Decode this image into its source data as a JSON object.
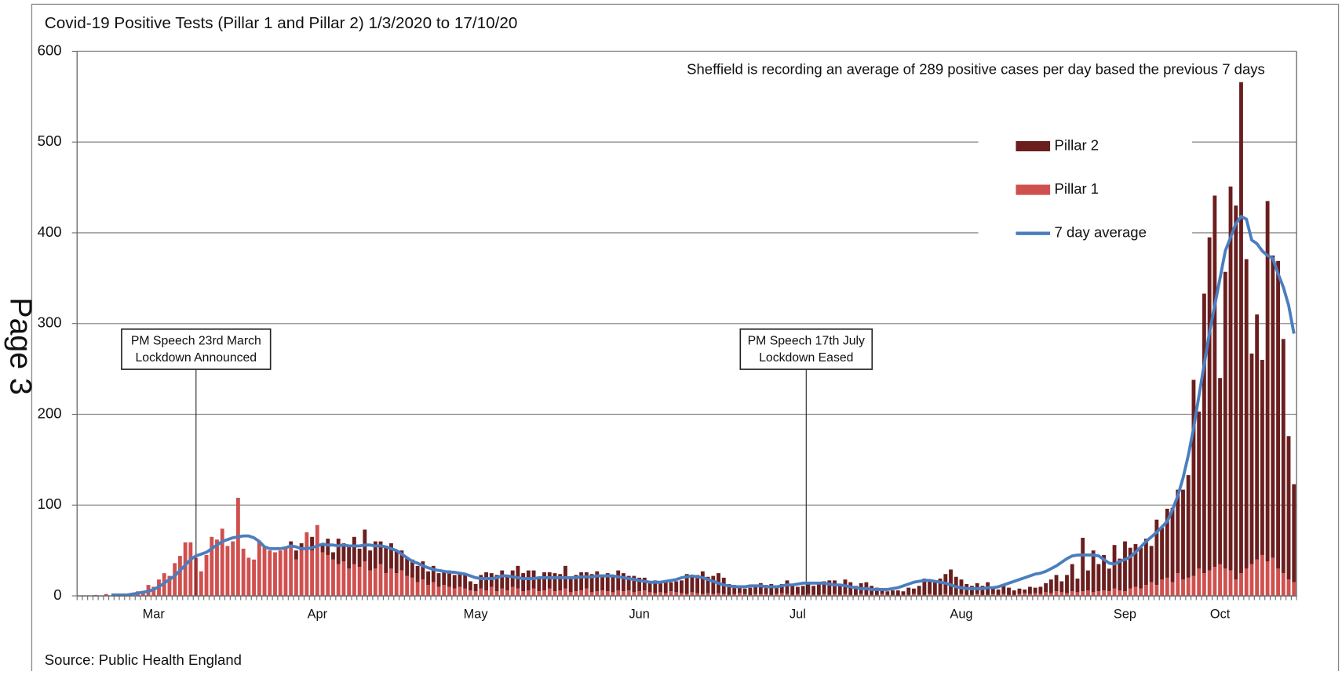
{
  "chart_data": {
    "type": "bar",
    "title": "Covid-19 Positive Tests (Pillar 1 and Pillar 2) 1/3/2020 to 17/10/20",
    "note": "Sheffield is recording an average of 289 positive cases per day based the previous 7 days",
    "source": "Source: Public Health England",
    "side_label": "Page 3",
    "annotations": [
      [
        "PM Speech 23rd March",
        "Lockdown Announced"
      ],
      [
        "PM Speech 17th July",
        "Lockdown Eased"
      ]
    ],
    "ylim": [
      0,
      600
    ],
    "yticks": [
      0,
      100,
      200,
      300,
      400,
      500,
      600
    ],
    "grid": true,
    "categories": [
      null,
      null,
      null,
      null,
      null,
      null,
      null,
      null,
      null,
      null,
      null,
      null,
      null,
      null,
      "Mar",
      null,
      null,
      null,
      null,
      null,
      null,
      null,
      null,
      null,
      null,
      null,
      null,
      null,
      null,
      null,
      null,
      null,
      null,
      null,
      null,
      null,
      null,
      null,
      null,
      null,
      null,
      null,
      null,
      null,
      null,
      "Apr",
      null,
      null,
      null,
      null,
      null,
      null,
      null,
      null,
      null,
      null,
      null,
      null,
      null,
      null,
      null,
      null,
      null,
      null,
      null,
      null,
      null,
      null,
      null,
      null,
      null,
      null,
      null,
      null,
      null,
      "May",
      null,
      null,
      null,
      null,
      null,
      null,
      null,
      null,
      null,
      null,
      null,
      null,
      null,
      null,
      null,
      null,
      null,
      null,
      null,
      null,
      null,
      null,
      null,
      null,
      null,
      null,
      null,
      null,
      null,
      null,
      "Jun",
      null,
      null,
      null,
      null,
      null,
      null,
      null,
      null,
      null,
      null,
      null,
      null,
      null,
      null,
      null,
      null,
      null,
      null,
      null,
      null,
      null,
      null,
      null,
      null,
      null,
      null,
      null,
      null,
      null,
      "Jul",
      null,
      null,
      null,
      null,
      null,
      null,
      null,
      null,
      null,
      null,
      null,
      null,
      null,
      null,
      null,
      null,
      null,
      null,
      null,
      null,
      null,
      null,
      null,
      null,
      null,
      null,
      null,
      null,
      null,
      null,
      "Aug",
      null,
      null,
      null,
      null,
      null,
      null,
      null,
      null,
      null,
      null,
      null,
      null,
      null,
      null,
      null,
      null,
      null,
      null,
      null,
      null,
      null,
      null,
      null,
      null,
      null,
      null,
      null,
      null,
      null,
      null,
      "Sep",
      null,
      null,
      null,
      null,
      null,
      null,
      null,
      null,
      null,
      null,
      null,
      null,
      null,
      null,
      null,
      null,
      null,
      "Oct",
      null,
      null,
      null,
      null,
      null,
      null,
      null,
      null,
      null,
      null,
      null,
      null,
      null,
      null
    ],
    "series": [
      {
        "name": "Pillar 2",
        "color": "#6b1e1e",
        "values": [
          0,
          0,
          0,
          0,
          0,
          0,
          0,
          0,
          0,
          0,
          0,
          0,
          0,
          0,
          0,
          0,
          0,
          0,
          0,
          0,
          0,
          0,
          0,
          0,
          0,
          0,
          0,
          0,
          0,
          0,
          0,
          0,
          0,
          0,
          0,
          0,
          0,
          0,
          0,
          0,
          5,
          10,
          8,
          0,
          15,
          0,
          10,
          18,
          8,
          28,
          20,
          25,
          30,
          20,
          35,
          22,
          30,
          25,
          30,
          28,
          25,
          22,
          20,
          20,
          18,
          20,
          15,
          18,
          15,
          16,
          18,
          15,
          16,
          15,
          10,
          8,
          15,
          20,
          15,
          18,
          20,
          15,
          18,
          25,
          20,
          22,
          20,
          14,
          20,
          18,
          20,
          18,
          25,
          15,
          18,
          20,
          18,
          20,
          22,
          16,
          20,
          18,
          22,
          20,
          16,
          18,
          15,
          14,
          12,
          14,
          12,
          13,
          10,
          12,
          14,
          22,
          18,
          20,
          25,
          18,
          20,
          22,
          18,
          12,
          10,
          8,
          6,
          8,
          10,
          12,
          10,
          12,
          8,
          10,
          15,
          12,
          8,
          10,
          12,
          10,
          12,
          14,
          16,
          15,
          12,
          16,
          14,
          10,
          12,
          14,
          10,
          8,
          6,
          4,
          5,
          6,
          4,
          8,
          6,
          10,
          18,
          16,
          14,
          18,
          22,
          28,
          20,
          16,
          12,
          10,
          12,
          10,
          14,
          8,
          6,
          10,
          8,
          5,
          6,
          4,
          8,
          6,
          8,
          10,
          15,
          18,
          12,
          20,
          30,
          15,
          59,
          22,
          46,
          30,
          39,
          25,
          48,
          35,
          55,
          45,
          47,
          45,
          51,
          40,
          72,
          57,
          76,
          82,
          92,
          99,
          113,
          216,
          173,
          308,
          367,
          409,
          205,
          327,
          423,
          412,
          541,
          341,
          232,
          270,
          215,
          397,
          333,
          339,
          258,
          158,
          108
        ]
      },
      {
        "name": "Pillar 1",
        "color": "#cf504e",
        "values": [
          0,
          0,
          0,
          1,
          0,
          2,
          0,
          0,
          1,
          2,
          3,
          5,
          4,
          12,
          10,
          18,
          25,
          22,
          36,
          44,
          59,
          59,
          42,
          27,
          45,
          65,
          62,
          74,
          55,
          60,
          108,
          52,
          42,
          40,
          60,
          55,
          50,
          48,
          50,
          52,
          55,
          40,
          50,
          70,
          50,
          78,
          48,
          45,
          40,
          35,
          38,
          30,
          35,
          32,
          38,
          28,
          30,
          35,
          25,
          30,
          25,
          28,
          22,
          20,
          15,
          18,
          12,
          15,
          10,
          12,
          10,
          8,
          10,
          8,
          6,
          5,
          8,
          6,
          10,
          5,
          8,
          6,
          10,
          8,
          5,
          6,
          8,
          5,
          6,
          8,
          5,
          6,
          8,
          4,
          5,
          6,
          8,
          4,
          5,
          6,
          5,
          4,
          6,
          5,
          6,
          4,
          5,
          6,
          4,
          3,
          4,
          3,
          5,
          4,
          3,
          2,
          4,
          3,
          2,
          3,
          2,
          3,
          2,
          1,
          2,
          3,
          2,
          1,
          2,
          2,
          2,
          1,
          2,
          3,
          2,
          1,
          2,
          1,
          2,
          1,
          1,
          2,
          1,
          2,
          1,
          2,
          1,
          1,
          2,
          1,
          1,
          1,
          2,
          1,
          1,
          0,
          1,
          1,
          2,
          1,
          1,
          2,
          1,
          1,
          2,
          1,
          1,
          2,
          1,
          1,
          2,
          1,
          1,
          2,
          1,
          2,
          1,
          1,
          2,
          3,
          2,
          3,
          2,
          4,
          3,
          5,
          4,
          3,
          5,
          4,
          5,
          6,
          4,
          5,
          6,
          5,
          8,
          6,
          5,
          8,
          10,
          8,
          12,
          15,
          12,
          18,
          20,
          15,
          25,
          18,
          20,
          22,
          30,
          25,
          28,
          32,
          35,
          30,
          28,
          18,
          25,
          30,
          35,
          40,
          45,
          38,
          42,
          30,
          25,
          18,
          15
        ]
      },
      {
        "name": "7 day average",
        "type": "line",
        "color": "#4a7ebf",
        "values": [
          null,
          null,
          null,
          null,
          null,
          null,
          1,
          1,
          1,
          1,
          2,
          3,
          4,
          5,
          7,
          10,
          14,
          18,
          22,
          28,
          34,
          40,
          44,
          46,
          48,
          52,
          56,
          60,
          62,
          64,
          65,
          66,
          66,
          64,
          60,
          54,
          52,
          52,
          52,
          53,
          55,
          54,
          52,
          52,
          53,
          55,
          57,
          56,
          56,
          55,
          56,
          55,
          55,
          55,
          56,
          56,
          55,
          55,
          54,
          52,
          50,
          46,
          42,
          38,
          36,
          33,
          31,
          29,
          28,
          27,
          26,
          26,
          25,
          24,
          22,
          20,
          19,
          19,
          19,
          20,
          22,
          22,
          21,
          20,
          19,
          19,
          19,
          20,
          20,
          20,
          20,
          20,
          20,
          20,
          20,
          21,
          21,
          21,
          22,
          22,
          22,
          22,
          21,
          20,
          19,
          18,
          17,
          16,
          15,
          15,
          15,
          16,
          17,
          18,
          20,
          21,
          22,
          21,
          20,
          18,
          16,
          14,
          12,
          11,
          10,
          10,
          10,
          11,
          11,
          11,
          10,
          10,
          10,
          11,
          12,
          12,
          13,
          14,
          14,
          14,
          14,
          14,
          13,
          12,
          12,
          11,
          10,
          9,
          8,
          8,
          7,
          7,
          7,
          7,
          8,
          9,
          11,
          13,
          15,
          16,
          17,
          17,
          16,
          15,
          14,
          12,
          10,
          9,
          8,
          8,
          8,
          8,
          9,
          9,
          10,
          12,
          14,
          16,
          18,
          20,
          22,
          24,
          25,
          27,
          30,
          33,
          37,
          41,
          44,
          45,
          45,
          45,
          45,
          44,
          40,
          36,
          35,
          38,
          40,
          43,
          48,
          54,
          60,
          65,
          70,
          76,
          82,
          95,
          110,
          130,
          155,
          185,
          220,
          255,
          290,
          320,
          350,
          380,
          395,
          410,
          418,
          415,
          392,
          388,
          380,
          375,
          372,
          355,
          340,
          320,
          289
        ]
      }
    ]
  }
}
